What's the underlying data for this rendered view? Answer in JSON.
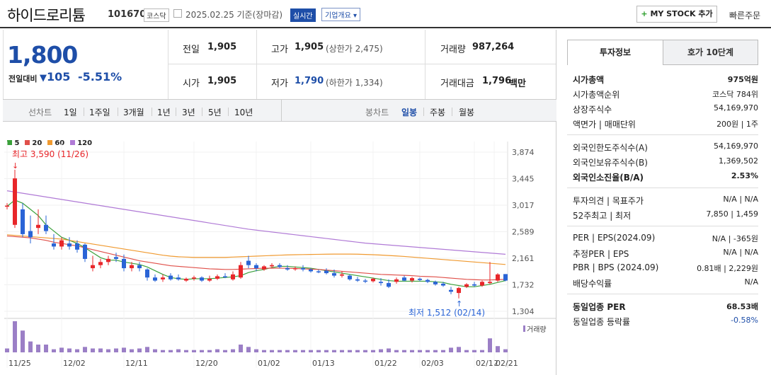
{
  "header": {
    "name": "하이드로리튬",
    "code": "101670",
    "market": "코스닥",
    "date": "2025.02.25  기준(장마감)",
    "realtime": "실시간",
    "summary": "기업개요",
    "mystock": "MY STOCK 추가",
    "quick_order": "빠른주문"
  },
  "price": {
    "current": "1,800",
    "compare_label": "전일대비",
    "change": "105",
    "change_pct": "-5.51%"
  },
  "quote": {
    "prev_label": "전일",
    "prev": "1,905",
    "high_label": "고가",
    "high": "1,905",
    "upper_limit": "(상한가 2,475)",
    "volume_label": "거래량",
    "volume": "987,264",
    "open_label": "시가",
    "open": "1,905",
    "low_label": "저가",
    "low": "1,790",
    "lower_limit": "(하한가 1,334)",
    "amount_label": "거래대금",
    "amount": "1,796",
    "amount_unit": "백만"
  },
  "tabs": {
    "line_chart": "선차트",
    "periods": [
      "1일",
      "1주일",
      "3개월",
      "1년",
      "3년",
      "5년",
      "10년"
    ],
    "candle_chart": "봉차트",
    "candle_types": [
      "일봉",
      "주봉",
      "월봉"
    ],
    "selected_candle": "일봉"
  },
  "chart_data": {
    "type": "candlestick",
    "ma_legend": [
      {
        "label": "5",
        "color": "#3aa03a"
      },
      {
        "label": "20",
        "color": "#e0504a"
      },
      {
        "label": "60",
        "color": "#f09a30"
      },
      {
        "label": "120",
        "color": "#b07ad6"
      }
    ],
    "y_ticks": [
      "3,874",
      "3,445",
      "3,017",
      "2,589",
      "2,161",
      "1,732",
      "1,304"
    ],
    "y_range": [
      1304,
      3874
    ],
    "x_ticks": [
      "11/25",
      "12/02",
      "12/11",
      "12/20",
      "01/02",
      "01/13",
      "01/22",
      "02/03",
      "02/12",
      "02/21"
    ],
    "max_label": "최고 3,590 (11/26)",
    "min_label": "최저 1,512 (02/14)",
    "volume_label": "거래량",
    "candles": [
      [
        3000,
        3050,
        2950,
        3010
      ],
      [
        2700,
        3590,
        2650,
        3450
      ],
      [
        2950,
        3050,
        2500,
        2550
      ],
      [
        2600,
        2850,
        2400,
        2500
      ],
      [
        2650,
        2950,
        2550,
        2700
      ],
      [
        2700,
        2850,
        2550,
        2600
      ],
      [
        2400,
        2550,
        2300,
        2350
      ],
      [
        2350,
        2500,
        2300,
        2450
      ],
      [
        2400,
        2500,
        2300,
        2350
      ],
      [
        2400,
        2450,
        2250,
        2300
      ],
      [
        2380,
        2400,
        2100,
        2150
      ],
      [
        2000,
        2200,
        1950,
        2050
      ],
      [
        2050,
        2150,
        2000,
        2100
      ],
      [
        2100,
        2200,
        2050,
        2150
      ],
      [
        2180,
        2250,
        2100,
        2150
      ],
      [
        2150,
        2220,
        1950,
        2000
      ],
      [
        2000,
        2100,
        1950,
        2050
      ],
      [
        2050,
        2100,
        1950,
        2000
      ],
      [
        1980,
        2000,
        1800,
        1850
      ],
      [
        1850,
        1900,
        1780,
        1800
      ],
      [
        1820,
        1900,
        1780,
        1850
      ],
      [
        1880,
        1920,
        1800,
        1820
      ],
      [
        1850,
        1900,
        1800,
        1820
      ],
      [
        1800,
        1850,
        1780,
        1830
      ],
      [
        1830,
        1880,
        1800,
        1850
      ],
      [
        1850,
        1870,
        1780,
        1800
      ],
      [
        1800,
        1880,
        1780,
        1830
      ],
      [
        1830,
        1900,
        1810,
        1870
      ],
      [
        1870,
        1920,
        1840,
        1860
      ],
      [
        1820,
        1950,
        1800,
        1900
      ],
      [
        1850,
        2100,
        1830,
        2050
      ],
      [
        2120,
        2200,
        2000,
        2050
      ],
      [
        2050,
        2080,
        1950,
        2000
      ],
      [
        1980,
        2050,
        1960,
        2030
      ],
      [
        2030,
        2080,
        2000,
        2050
      ],
      [
        2050,
        2080,
        2000,
        2020
      ],
      [
        2000,
        2050,
        1960,
        1980
      ],
      [
        1990,
        2030,
        1960,
        2000
      ],
      [
        2000,
        2050,
        1950,
        1980
      ],
      [
        1980,
        2000,
        1930,
        1950
      ],
      [
        1950,
        1980,
        1920,
        1940
      ],
      [
        1960,
        2000,
        1900,
        1920
      ],
      [
        1920,
        1980,
        1850,
        1880
      ],
      [
        1880,
        1950,
        1850,
        1900
      ],
      [
        1880,
        1900,
        1800,
        1820
      ],
      [
        1820,
        1860,
        1780,
        1800
      ],
      [
        1800,
        1830,
        1760,
        1790
      ],
      [
        1790,
        1850,
        1770,
        1830
      ],
      [
        1780,
        1840,
        1720,
        1760
      ],
      [
        1760,
        1820,
        1680,
        1700
      ],
      [
        1780,
        1850,
        1750,
        1820
      ],
      [
        1850,
        1880,
        1790,
        1800
      ],
      [
        1800,
        1860,
        1770,
        1840
      ],
      [
        1830,
        1850,
        1790,
        1810
      ],
      [
        1810,
        1830,
        1760,
        1780
      ],
      [
        1780,
        1800,
        1720,
        1740
      ],
      [
        1750,
        1780,
        1700,
        1720
      ],
      [
        1650,
        1700,
        1580,
        1620
      ],
      [
        1600,
        1700,
        1512,
        1680
      ],
      [
        1700,
        1760,
        1680,
        1740
      ],
      [
        1740,
        1780,
        1700,
        1720
      ],
      [
        1720,
        1800,
        1700,
        1780
      ],
      [
        1760,
        2100,
        1740,
        1780
      ],
      [
        1800,
        1920,
        1780,
        1900
      ],
      [
        1905,
        1905,
        1790,
        1800
      ]
    ],
    "ma": {
      "5": [
        3000,
        3100,
        3050,
        2950,
        2850,
        2700,
        2600,
        2500,
        2450,
        2400,
        2330,
        2250,
        2170,
        2130,
        2130,
        2100,
        2080,
        2060,
        2020,
        1960,
        1900,
        1850,
        1830,
        1820,
        1830,
        1830,
        1830,
        1840,
        1850,
        1860,
        1880,
        1930,
        1960,
        1980,
        2010,
        2030,
        2030,
        2020,
        2010,
        2000,
        1980,
        1960,
        1940,
        1920,
        1900,
        1880,
        1860,
        1840,
        1820,
        1800,
        1790,
        1790,
        1790,
        1790,
        1790,
        1780,
        1770,
        1740,
        1720,
        1700,
        1700,
        1720,
        1740,
        1770,
        1800
      ],
      "20": [
        2520,
        2510,
        2500,
        2490,
        2470,
        2450,
        2420,
        2400,
        2380,
        2360,
        2330,
        2300,
        2270,
        2240,
        2210,
        2180,
        2150,
        2120,
        2100,
        2080,
        2060,
        2040,
        2030,
        2020,
        2010,
        2000,
        1990,
        1985,
        1980,
        1980,
        1985,
        1990,
        1995,
        2000,
        2000,
        2000,
        2000,
        1995,
        1990,
        1985,
        1980,
        1970,
        1960,
        1950,
        1940,
        1930,
        1920,
        1910,
        1900,
        1895,
        1890,
        1885,
        1880,
        1870,
        1865,
        1860,
        1850,
        1840,
        1830,
        1820,
        1815,
        1810,
        1810,
        1815,
        1820
      ],
      "60": [
        2540,
        2530,
        2520,
        2510,
        2500,
        2490,
        2480,
        2470,
        2450,
        2430,
        2410,
        2390,
        2370,
        2350,
        2330,
        2310,
        2290,
        2270,
        2250,
        2230,
        2210,
        2195,
        2185,
        2180,
        2175,
        2175,
        2175,
        2175,
        2175,
        2180,
        2185,
        2190,
        2195,
        2200,
        2205,
        2210,
        2215,
        2218,
        2220,
        2222,
        2224,
        2226,
        2228,
        2228,
        2228,
        2226,
        2222,
        2218,
        2212,
        2205,
        2198,
        2190,
        2180,
        2170,
        2160,
        2150,
        2140,
        2130,
        2120,
        2110,
        2100,
        2090,
        2080,
        2070,
        2060
      ],
      "120": [
        3250,
        3230,
        3210,
        3190,
        3170,
        3150,
        3130,
        3110,
        3090,
        3070,
        3050,
        3030,
        3010,
        2990,
        2970,
        2950,
        2930,
        2910,
        2890,
        2870,
        2850,
        2830,
        2810,
        2790,
        2770,
        2750,
        2730,
        2710,
        2690,
        2670,
        2650,
        2630,
        2615,
        2600,
        2585,
        2570,
        2555,
        2540,
        2525,
        2510,
        2495,
        2480,
        2465,
        2450,
        2435,
        2420,
        2405,
        2395,
        2385,
        2375,
        2365,
        2355,
        2345,
        2335,
        2325,
        2315,
        2305,
        2295,
        2285,
        2275,
        2265,
        2255,
        2245,
        2235,
        2225
      ]
    },
    "volume": [
      5,
      40,
      28,
      14,
      10,
      10,
      4,
      6,
      5,
      4,
      7,
      5,
      5,
      4,
      5,
      6,
      4,
      5,
      7,
      4,
      3,
      3,
      4,
      3,
      3,
      3,
      3,
      4,
      3,
      4,
      10,
      7,
      4,
      3,
      3,
      3,
      3,
      3,
      3,
      3,
      3,
      3,
      3,
      3,
      3,
      3,
      3,
      3,
      4,
      5,
      3,
      3,
      3,
      3,
      3,
      3,
      3,
      6,
      7,
      3,
      3,
      3,
      18,
      8,
      4
    ]
  },
  "panel": {
    "tab_invest": "투자정보",
    "tab_orderbook": "호가 10단계",
    "rows1": [
      {
        "k": "시가총액",
        "v": "975억원",
        "bold": true
      },
      {
        "k": "시가총액순위",
        "v": "코스닥 784위"
      },
      {
        "k": "상장주식수",
        "v": "54,169,970"
      },
      {
        "k": "액면가 | 매매단위",
        "v": "200원 | 1주"
      }
    ],
    "rows2": [
      {
        "k": "외국인한도주식수(A)",
        "v": "54,169,970"
      },
      {
        "k": "외국인보유주식수(B)",
        "v": "1,369,502"
      },
      {
        "k": "외국인소진율(B/A)",
        "v": "2.53%",
        "bold": true
      }
    ],
    "rows3": [
      {
        "k": "투자의견 | 목표주가",
        "v": "N/A | N/A"
      },
      {
        "k": "52주최고 | 최저",
        "v": "7,850 | 1,459"
      }
    ],
    "rows4": [
      {
        "k": "PER | EPS(2024.09)",
        "v": "N/A | -365원"
      },
      {
        "k": "추정PER | EPS",
        "v": "N/A | N/A"
      },
      {
        "k": "PBR | BPS (2024.09)",
        "v": "0.81배 | 2,229원"
      },
      {
        "k": "배당수익률",
        "v": "N/A"
      }
    ],
    "rows5": [
      {
        "k": "동일업종 PER",
        "v": "68.53배",
        "bold": true
      },
      {
        "k": "동일업종 등락률",
        "v": "-0.58%",
        "blue": true
      }
    ]
  }
}
